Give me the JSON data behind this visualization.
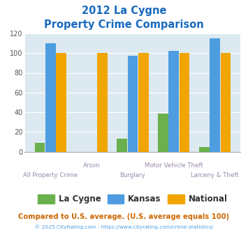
{
  "title_line1": "2012 La Cygne",
  "title_line2": "Property Crime Comparison",
  "categories": [
    "All Property Crime",
    "Arson",
    "Burglary",
    "Motor Vehicle Theft",
    "Larceny & Theft"
  ],
  "la_cygne": [
    9,
    0,
    13,
    39,
    5
  ],
  "kansas": [
    110,
    0,
    97,
    102,
    115
  ],
  "national": [
    100,
    100,
    100,
    100,
    100
  ],
  "la_cygne_color": "#6ab04c",
  "kansas_color": "#4d9de0",
  "national_color": "#f0a500",
  "title_color": "#1a6abf",
  "bg_color": "#dce9f0",
  "xlabel_color": "#9988aa",
  "ylabel_max": 120,
  "ylabel_ticks": [
    0,
    20,
    40,
    60,
    80,
    100,
    120
  ],
  "footer_text": "Compared to U.S. average. (U.S. average equals 100)",
  "footer_color": "#cc6600",
  "credit_text": "© 2025 CityRating.com - https://www.cityrating.com/crime-statistics/",
  "credit_color": "#4d9de0",
  "legend_labels": [
    "La Cygne",
    "Kansas",
    "National"
  ],
  "legend_text_color": "#333333",
  "grid_color": "#c0ccd8",
  "spine_color": "#aaaaaa"
}
